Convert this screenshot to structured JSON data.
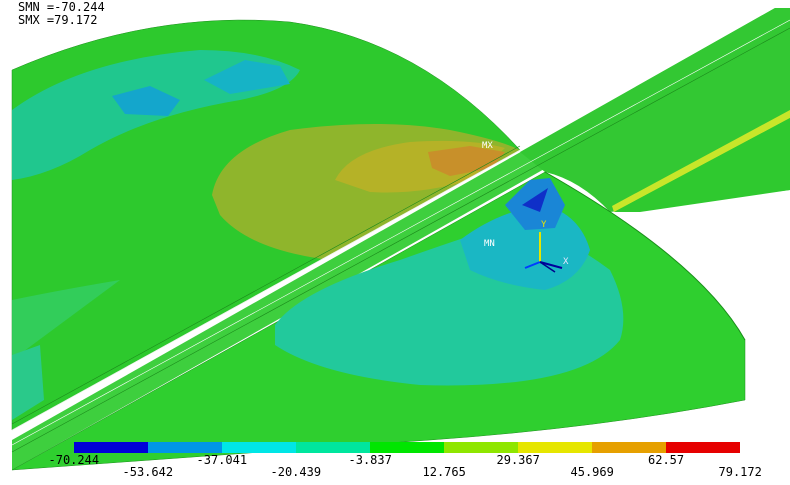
{
  "header": {
    "smn": "SMN =-70.244",
    "smx": "SMX =79.172"
  },
  "markers": {
    "mx": "MX",
    "mn": "MN"
  },
  "triad": {
    "y": "Y",
    "x": "X"
  },
  "legend": {
    "colors": [
      "#0000d9",
      "#0096e6",
      "#00e6e6",
      "#00e69e",
      "#00e600",
      "#8fe600",
      "#e6e600",
      "#e6a000",
      "#e60000"
    ],
    "values": [
      "-70.244",
      "-53.642",
      "-37.041",
      "-20.439",
      "-3.837",
      "12.765",
      "29.367",
      "45.969",
      "62.57",
      "79.172"
    ]
  },
  "colors": {
    "background": "#ffffff",
    "base_green": "#2fcf2f",
    "mx_contour": "#c8902a",
    "mn_contour": "#2a6ed9"
  }
}
